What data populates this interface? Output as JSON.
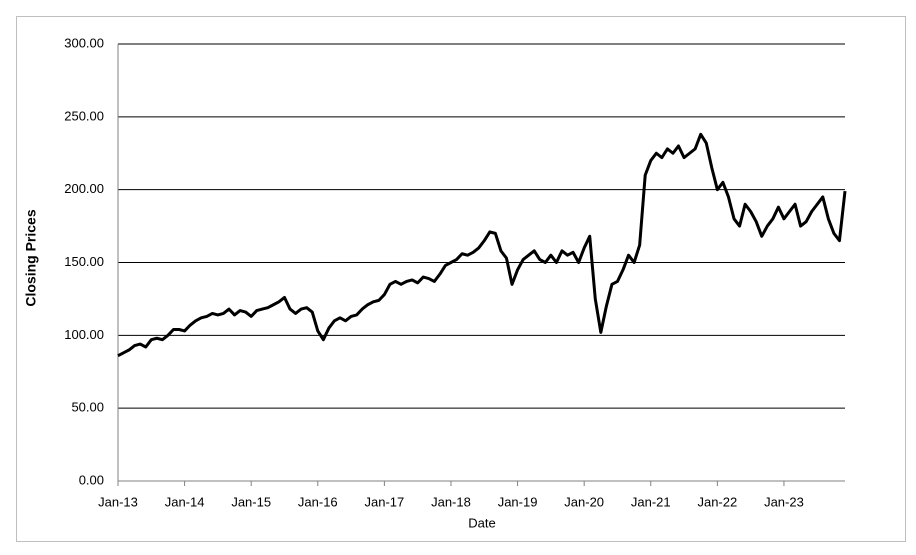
{
  "chart_data": {
    "type": "line",
    "x_label": "Date",
    "y_label": "Closing Prices",
    "xlim": [
      "2013-01",
      "2023-12"
    ],
    "xticks": [
      {
        "value": "2013-01",
        "label": "Jan-13"
      },
      {
        "value": "2014-01",
        "label": "Jan-14"
      },
      {
        "value": "2015-01",
        "label": "Jan-15"
      },
      {
        "value": "2016-01",
        "label": "Jan-16"
      },
      {
        "value": "2017-01",
        "label": "Jan-17"
      },
      {
        "value": "2018-01",
        "label": "Jan-18"
      },
      {
        "value": "2019-01",
        "label": "Jan-19"
      },
      {
        "value": "2020-01",
        "label": "Jan-20"
      },
      {
        "value": "2021-01",
        "label": "Jan-21"
      },
      {
        "value": "2022-01",
        "label": "Jan-22"
      },
      {
        "value": "2023-01",
        "label": "Jan-23"
      }
    ],
    "ylim": [
      0,
      300
    ],
    "yticks": [
      {
        "value": 0,
        "label": "0.00"
      },
      {
        "value": 50,
        "label": "50.00"
      },
      {
        "value": 100,
        "label": "100.00"
      },
      {
        "value": 150,
        "label": "150.00"
      },
      {
        "value": 200,
        "label": "200.00"
      },
      {
        "value": 250,
        "label": "250.00"
      },
      {
        "value": 300,
        "label": "300.00"
      }
    ],
    "grid": true,
    "color": "#000000",
    "x": [
      "2013-01",
      "2013-02",
      "2013-03",
      "2013-04",
      "2013-05",
      "2013-06",
      "2013-07",
      "2013-08",
      "2013-09",
      "2013-10",
      "2013-11",
      "2013-12",
      "2014-01",
      "2014-02",
      "2014-03",
      "2014-04",
      "2014-05",
      "2014-06",
      "2014-07",
      "2014-08",
      "2014-09",
      "2014-10",
      "2014-11",
      "2014-12",
      "2015-01",
      "2015-02",
      "2015-03",
      "2015-04",
      "2015-05",
      "2015-06",
      "2015-07",
      "2015-08",
      "2015-09",
      "2015-10",
      "2015-11",
      "2015-12",
      "2016-01",
      "2016-02",
      "2016-03",
      "2016-04",
      "2016-05",
      "2016-06",
      "2016-07",
      "2016-08",
      "2016-09",
      "2016-10",
      "2016-11",
      "2016-12",
      "2017-01",
      "2017-02",
      "2017-03",
      "2017-04",
      "2017-05",
      "2017-06",
      "2017-07",
      "2017-08",
      "2017-09",
      "2017-10",
      "2017-11",
      "2017-12",
      "2018-01",
      "2018-02",
      "2018-03",
      "2018-04",
      "2018-05",
      "2018-06",
      "2018-07",
      "2018-08",
      "2018-09",
      "2018-10",
      "2018-11",
      "2018-12",
      "2019-01",
      "2019-02",
      "2019-03",
      "2019-04",
      "2019-05",
      "2019-06",
      "2019-07",
      "2019-08",
      "2019-09",
      "2019-10",
      "2019-11",
      "2019-12",
      "2020-01",
      "2020-02",
      "2020-03",
      "2020-04",
      "2020-05",
      "2020-06",
      "2020-07",
      "2020-08",
      "2020-09",
      "2020-10",
      "2020-11",
      "2020-12",
      "2021-01",
      "2021-02",
      "2021-03",
      "2021-04",
      "2021-05",
      "2021-06",
      "2021-07",
      "2021-08",
      "2021-09",
      "2021-10",
      "2021-11",
      "2021-12",
      "2022-01",
      "2022-02",
      "2022-03",
      "2022-04",
      "2022-05",
      "2022-06",
      "2022-07",
      "2022-08",
      "2022-09",
      "2022-10",
      "2022-11",
      "2022-12",
      "2023-01",
      "2023-02",
      "2023-03",
      "2023-04",
      "2023-05",
      "2023-06",
      "2023-07",
      "2023-08",
      "2023-09",
      "2023-10",
      "2023-11",
      "2023-12"
    ],
    "values": [
      86,
      88,
      90,
      93,
      94,
      92,
      97,
      98,
      97,
      100,
      104,
      104,
      103,
      107,
      110,
      112,
      113,
      115,
      114,
      115,
      118,
      114,
      117,
      116,
      113,
      117,
      118,
      119,
      121,
      123,
      126,
      118,
      115,
      118,
      119,
      116,
      103,
      97,
      105,
      110,
      112,
      110,
      113,
      114,
      118,
      121,
      123,
      124,
      128,
      135,
      137,
      135,
      137,
      138,
      136,
      140,
      139,
      137,
      142,
      148,
      150,
      152,
      156,
      155,
      157,
      160,
      165,
      171,
      170,
      158,
      153,
      135,
      145,
      152,
      155,
      158,
      152,
      150,
      155,
      150,
      158,
      155,
      157,
      150,
      160,
      168,
      125,
      102,
      120,
      135,
      137,
      145,
      155,
      150,
      162,
      210,
      220,
      225,
      222,
      228,
      225,
      230,
      222,
      225,
      228,
      238,
      232,
      215,
      200,
      205,
      195,
      180,
      175,
      190,
      185,
      178,
      168,
      175,
      180,
      188,
      180,
      185,
      190,
      175,
      178,
      185,
      190,
      195,
      180,
      170,
      165,
      199
    ]
  }
}
